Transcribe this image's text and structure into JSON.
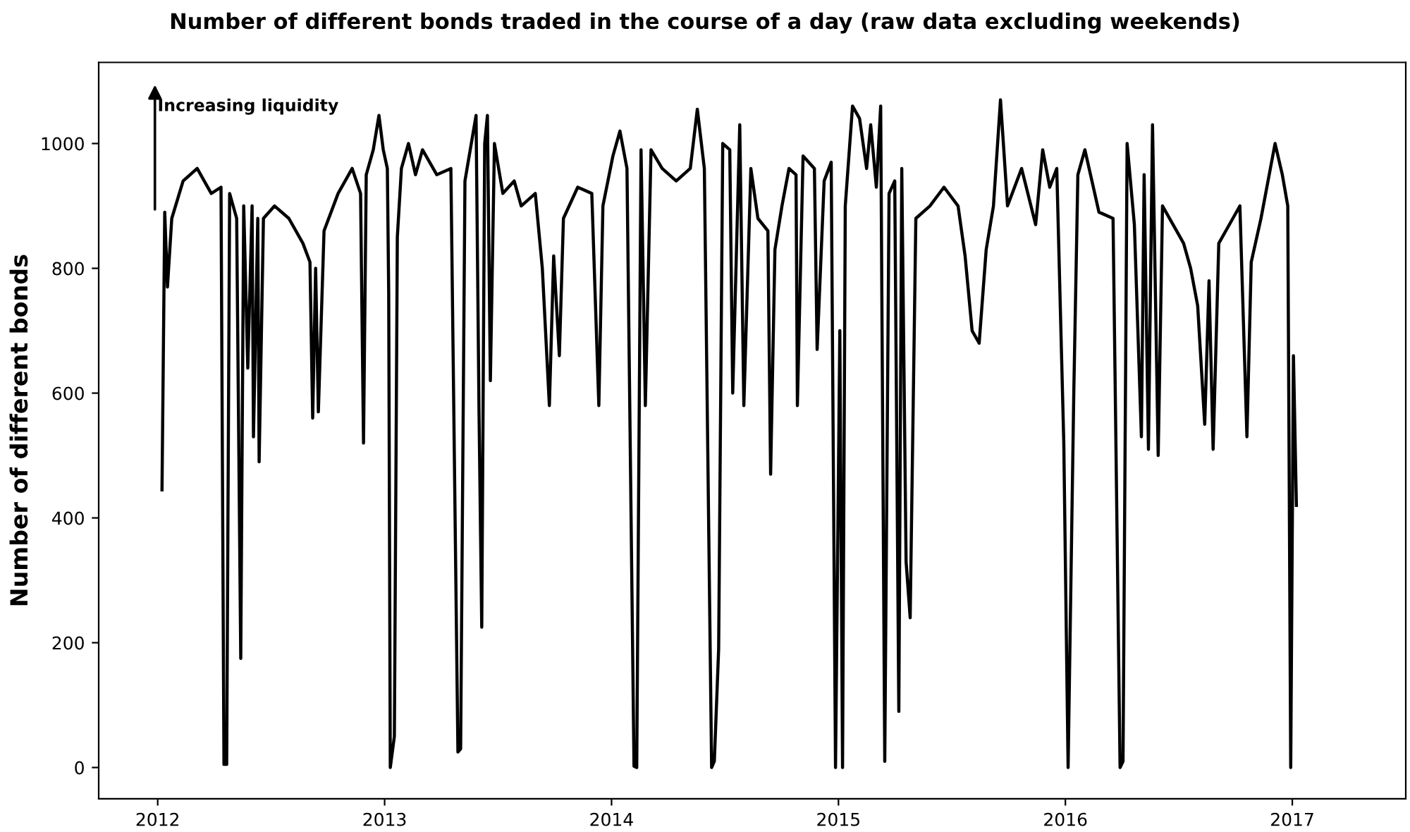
{
  "chart_data": {
    "type": "line",
    "title": "Number of different bonds traded in the course of a day (raw data excluding weekends)",
    "ylabel": "Number of different bonds",
    "annotations": [
      "Increasing liquidity"
    ],
    "x": [
      2012.019,
      2012.031,
      2012.043,
      2012.062,
      2012.112,
      2012.174,
      2012.236,
      2012.279,
      2012.292,
      2012.304,
      2012.317,
      2012.348,
      2012.366,
      2012.379,
      2012.397,
      2012.416,
      2012.422,
      2012.441,
      2012.447,
      2012.466,
      2012.515,
      2012.578,
      2012.64,
      2012.671,
      2012.683,
      2012.696,
      2012.708,
      2012.733,
      2012.795,
      2012.857,
      2012.894,
      2012.907,
      2012.919,
      2012.95,
      2012.975,
      2012.994,
      2013.012,
      2013.018,
      2013.025,
      2013.043,
      2013.056,
      2013.074,
      2013.105,
      2013.136,
      2013.167,
      2013.23,
      2013.292,
      2013.323,
      2013.335,
      2013.354,
      2013.403,
      2013.416,
      2013.428,
      2013.441,
      2013.453,
      2013.466,
      2013.484,
      2013.521,
      2013.571,
      2013.602,
      2013.664,
      2013.695,
      2013.726,
      2013.745,
      2013.77,
      2013.788,
      2013.851,
      2013.913,
      2013.944,
      2013.962,
      2014.006,
      2014.037,
      2014.068,
      2014.099,
      2014.111,
      2014.13,
      2014.149,
      2014.174,
      2014.223,
      2014.285,
      2014.347,
      2014.378,
      2014.409,
      2014.441,
      2014.453,
      2014.472,
      2014.49,
      2014.521,
      2014.534,
      2014.565,
      2014.583,
      2014.614,
      2014.645,
      2014.689,
      2014.701,
      2014.72,
      2014.751,
      2014.782,
      2014.813,
      2014.819,
      2014.844,
      2014.894,
      2014.906,
      2014.937,
      2014.968,
      2014.987,
      2015.006,
      2015.018,
      2015.03,
      2015.062,
      2015.093,
      2015.124,
      2015.142,
      2015.167,
      2015.186,
      2015.204,
      2015.223,
      2015.248,
      2015.266,
      2015.279,
      2015.298,
      2015.316,
      2015.341,
      2015.403,
      2015.465,
      2015.527,
      2015.558,
      2015.589,
      2015.62,
      2015.651,
      2015.683,
      2015.714,
      2015.745,
      2015.807,
      2015.869,
      2015.9,
      2015.931,
      2015.962,
      2015.993,
      2016.012,
      2016.037,
      2016.055,
      2016.086,
      2016.148,
      2016.21,
      2016.241,
      2016.254,
      2016.272,
      2016.304,
      2016.335,
      2016.347,
      2016.366,
      2016.384,
      2016.409,
      2016.428,
      2016.49,
      2016.521,
      2016.552,
      2016.583,
      2016.614,
      2016.633,
      2016.651,
      2016.676,
      2016.738,
      2016.769,
      2016.8,
      2016.819,
      2016.862,
      2016.924,
      2016.956,
      2016.98,
      2016.993,
      2017.005,
      2017.018
    ],
    "values": [
      445,
      890,
      770,
      880,
      940,
      960,
      920,
      930,
      5,
      5,
      920,
      880,
      175,
      900,
      640,
      900,
      530,
      880,
      490,
      880,
      900,
      880,
      840,
      810,
      560,
      800,
      570,
      860,
      920,
      960,
      920,
      520,
      950,
      990,
      1045,
      990,
      960,
      760,
      0,
      50,
      850,
      960,
      1000,
      950,
      990,
      950,
      960,
      25,
      30,
      940,
      1045,
      570,
      225,
      1000,
      1045,
      620,
      1000,
      920,
      940,
      900,
      920,
      800,
      580,
      820,
      660,
      880,
      930,
      920,
      580,
      900,
      980,
      1020,
      960,
      2,
      0,
      990,
      580,
      990,
      960,
      940,
      960,
      1055,
      960,
      0,
      10,
      190,
      1000,
      990,
      600,
      1030,
      580,
      960,
      880,
      860,
      470,
      830,
      900,
      960,
      950,
      580,
      980,
      960,
      670,
      940,
      970,
      0,
      700,
      0,
      900,
      1060,
      1040,
      960,
      1030,
      930,
      1060,
      10,
      920,
      940,
      90,
      960,
      330,
      240,
      880,
      900,
      930,
      900,
      820,
      700,
      680,
      830,
      900,
      1070,
      900,
      960,
      870,
      990,
      930,
      960,
      520,
      0,
      600,
      950,
      990,
      890,
      880,
      0,
      10,
      1000,
      870,
      530,
      950,
      510,
      1030,
      500,
      900,
      860,
      840,
      800,
      740,
      550,
      780,
      510,
      840,
      880,
      900,
      530,
      810,
      880,
      1000,
      950,
      900,
      0,
      660,
      420
    ],
    "color": "#000000",
    "xlim": [
      2011.74,
      2017.5
    ],
    "ylim": [
      -50,
      1130
    ],
    "xticks": [
      2012,
      2013,
      2014,
      2015,
      2016,
      2017
    ],
    "yticks": [
      0,
      200,
      400,
      600,
      800,
      1000
    ],
    "grid": false,
    "legend": false
  }
}
